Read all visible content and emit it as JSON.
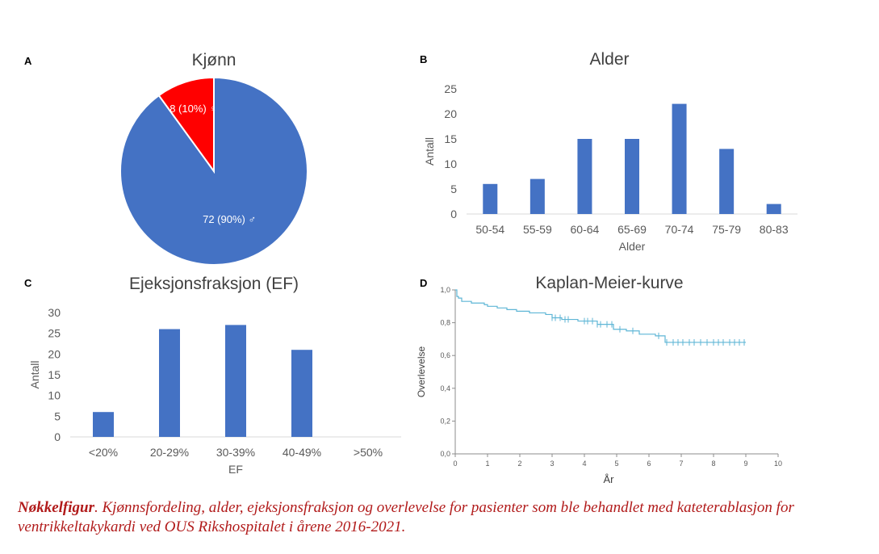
{
  "panels": {
    "a": "A",
    "b": "B",
    "c": "C",
    "d": "D"
  },
  "colors": {
    "blue": "#4472c4",
    "red": "#ff0000",
    "km": "#5fb6d6",
    "axis_text": "#595959",
    "caption": "#b11a1a"
  },
  "chart_data": [
    {
      "type": "pie",
      "title": "Kjønn",
      "slices": [
        {
          "label": "72 (90%) ♂",
          "value": 72,
          "color": "#4472c4"
        },
        {
          "label": "8 (10%) ♀",
          "value": 8,
          "color": "#ff0000"
        }
      ]
    },
    {
      "type": "bar",
      "title": "Alder",
      "xlabel": "Alder",
      "ylabel": "Antall",
      "categories": [
        "50-54",
        "55-59",
        "60-64",
        "65-69",
        "70-74",
        "75-79",
        "80-83"
      ],
      "values": [
        6,
        7,
        15,
        15,
        22,
        13,
        2
      ],
      "ylim": [
        0,
        25
      ],
      "yticks": [
        "0",
        "5",
        "10",
        "15",
        "20",
        "25"
      ],
      "grid": false
    },
    {
      "type": "bar",
      "title": "Ejeksjonsfraksjon (EF)",
      "xlabel": "EF",
      "ylabel": "Antall",
      "categories": [
        "<20%",
        "20-29%",
        "30-39%",
        "40-49%",
        ">50%"
      ],
      "values": [
        6,
        26,
        27,
        21,
        0
      ],
      "ylim": [
        0,
        30
      ],
      "yticks": [
        "0",
        "5",
        "10",
        "15",
        "20",
        "25",
        "30"
      ],
      "grid": false
    },
    {
      "type": "line",
      "title": "Kaplan-Meier-kurve",
      "xlabel": "År",
      "ylabel": "Overlevelse",
      "xlim": [
        0,
        10
      ],
      "ylim": [
        0,
        1
      ],
      "xticks": [
        "0",
        "1",
        "2",
        "3",
        "4",
        "5",
        "6",
        "7",
        "8",
        "9",
        "10"
      ],
      "yticks": [
        "0,0",
        "0,2",
        "0,4",
        "0,6",
        "0,8",
        "1,0"
      ],
      "step": true,
      "series": [
        {
          "x": [
            0,
            0.05,
            0.1,
            0.2,
            0.5,
            0.9,
            1.0,
            1.3,
            1.6,
            1.9,
            2.3,
            2.8,
            3.0,
            3.3,
            3.8,
            4.4,
            4.9,
            5.3,
            5.7,
            6.2,
            6.5,
            9.0
          ],
          "y": [
            1.0,
            0.96,
            0.95,
            0.93,
            0.92,
            0.91,
            0.9,
            0.89,
            0.88,
            0.87,
            0.86,
            0.85,
            0.83,
            0.82,
            0.81,
            0.79,
            0.76,
            0.75,
            0.73,
            0.72,
            0.68,
            0.68
          ],
          "censored_x": [
            3.0,
            3.1,
            3.25,
            3.4,
            3.5,
            4.0,
            4.1,
            4.25,
            4.4,
            4.5,
            4.7,
            4.85,
            5.1,
            5.5,
            6.3,
            6.55,
            6.75,
            6.9,
            7.05,
            7.25,
            7.4,
            7.6,
            7.8,
            8.0,
            8.15,
            8.3,
            8.5,
            8.65,
            8.8,
            8.95
          ]
        }
      ]
    }
  ],
  "caption": {
    "bold": "Nøkkelfigur",
    "text": ". Kjønnsfordeling, alder, ejeksjonsfraksjon og overlevelse for pasienter som ble behandlet med kateterablasjon for ventrikkeltakykardi ved OUS Rikshospitalet i årene 2016-2021."
  }
}
